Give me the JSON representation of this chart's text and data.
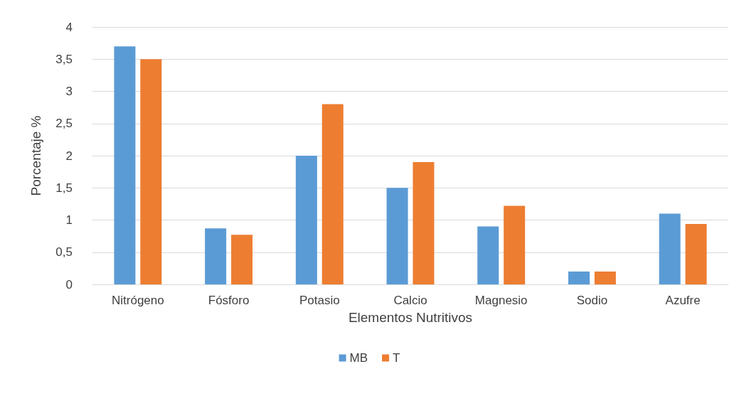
{
  "chart_data": {
    "type": "bar",
    "xlabel": "Elementos Nutritivos",
    "ylabel": "Porcentaje %",
    "categories": [
      "Nitrógeno",
      "Fósforo",
      "Potasio",
      "Calcio",
      "Magnesio",
      "Sodio",
      "Azufre"
    ],
    "series": [
      {
        "name": "MB",
        "color": "#5b9bd5",
        "values": [
          3.7,
          0.87,
          2.0,
          1.5,
          0.9,
          0.2,
          1.1
        ]
      },
      {
        "name": "T",
        "color": "#ed7d31",
        "values": [
          3.5,
          0.77,
          2.8,
          1.9,
          1.22,
          0.2,
          0.94
        ]
      }
    ],
    "ylim": [
      0,
      4
    ],
    "yticks": [
      0,
      {
        "value": 0.5,
        "label": "0,5"
      },
      1,
      {
        "value": 1.5,
        "label": "1,5"
      },
      2,
      {
        "value": 2.5,
        "label": "2,5"
      },
      3,
      {
        "value": 3.5,
        "label": "3,5"
      },
      4
    ],
    "grid": "y",
    "legend": "bottom"
  }
}
